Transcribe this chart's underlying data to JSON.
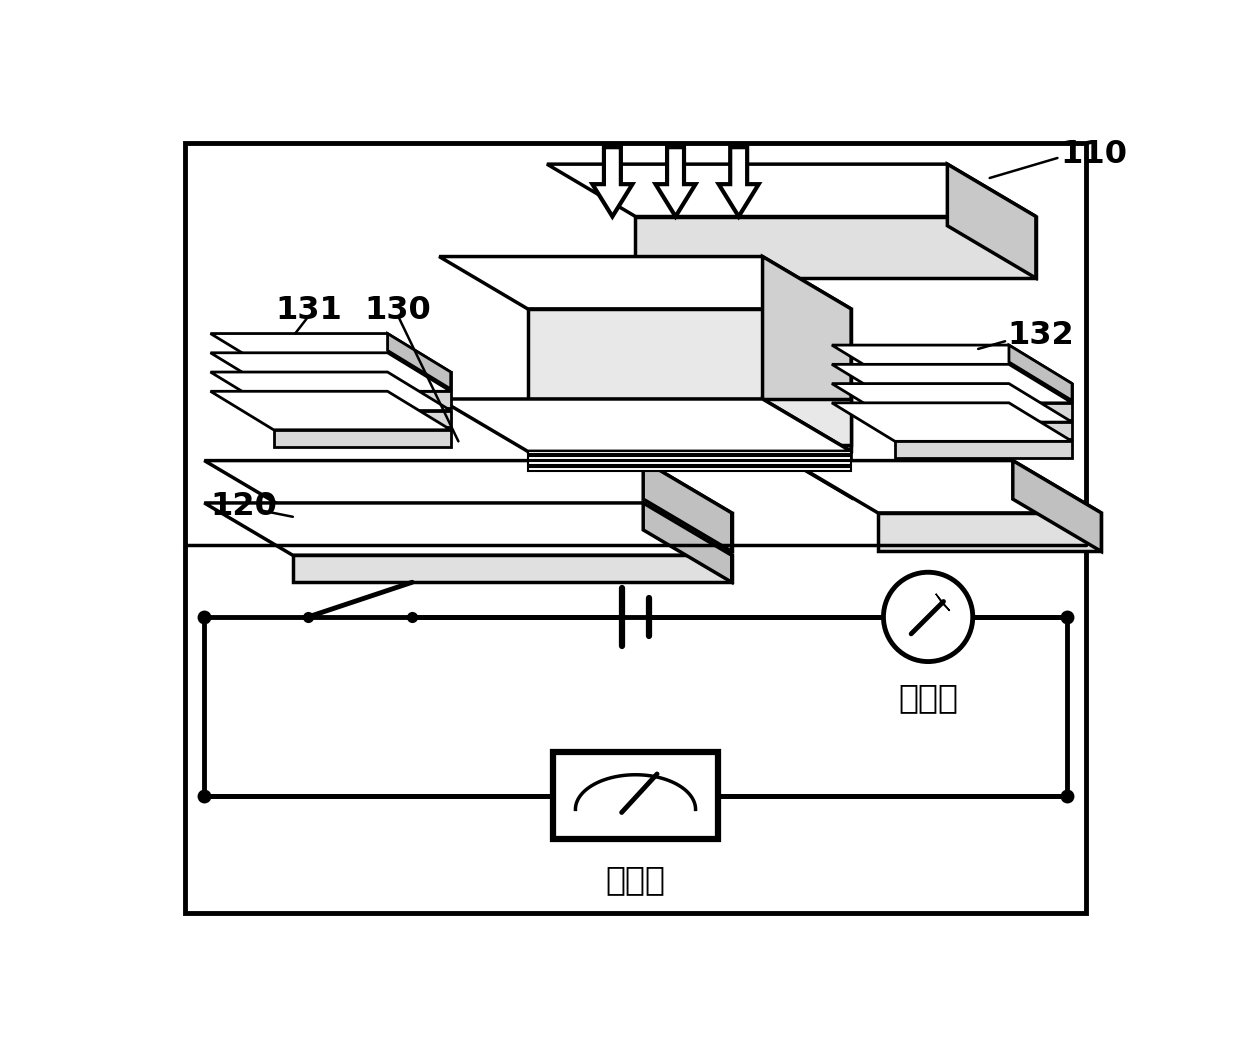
{
  "bg_color": "#ffffff",
  "line_color": "#000000",
  "label_110": "110",
  "label_120": "120",
  "label_130": "130",
  "label_131": "131",
  "label_132": "132",
  "label_ammeter": "电流表",
  "label_voltmeter": "电压表",
  "lw": 2.5,
  "arrow_lw": 3.0
}
